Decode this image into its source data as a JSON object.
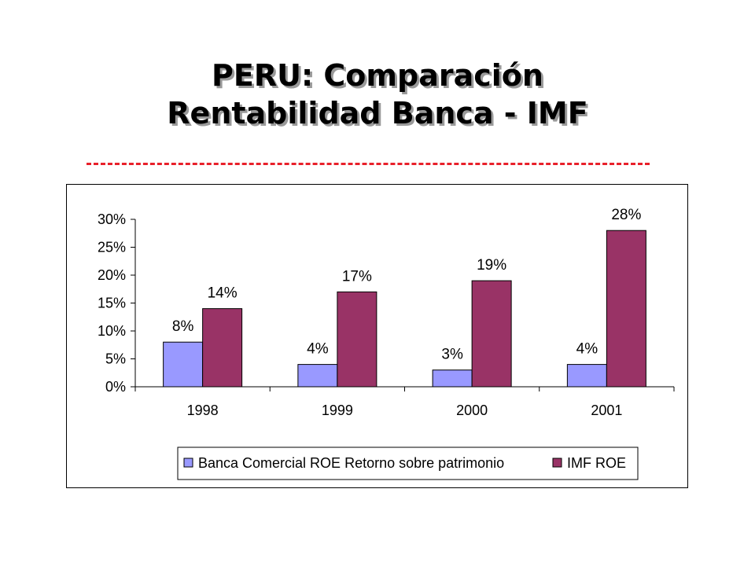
{
  "title": {
    "line1": "PERU: Comparación",
    "line2": "Rentabilidad Banca - IMF"
  },
  "colors": {
    "divider": "#e8202a",
    "banca": "#9999ff",
    "imf": "#993366"
  },
  "chart_data": {
    "type": "bar",
    "categories": [
      "1998",
      "1999",
      "2000",
      "2001"
    ],
    "series": [
      {
        "name": "Banca Comercial ROE Retorno sobre patrimonio",
        "values": [
          8,
          4,
          3,
          4
        ],
        "labels": [
          "8%",
          "4%",
          "3%",
          "4%"
        ],
        "color": "#9999ff"
      },
      {
        "name": "IMF ROE",
        "values": [
          14,
          17,
          19,
          28
        ],
        "labels": [
          "14%",
          "17%",
          "19%",
          "28%"
        ],
        "color": "#993366"
      }
    ],
    "y_ticks": [
      0,
      5,
      10,
      15,
      20,
      25,
      30
    ],
    "y_tick_labels": [
      "0%",
      "5%",
      "10%",
      "15%",
      "20%",
      "25%",
      "30%"
    ],
    "ylim": [
      0,
      30
    ],
    "grid": false,
    "legend_position": "bottom"
  }
}
